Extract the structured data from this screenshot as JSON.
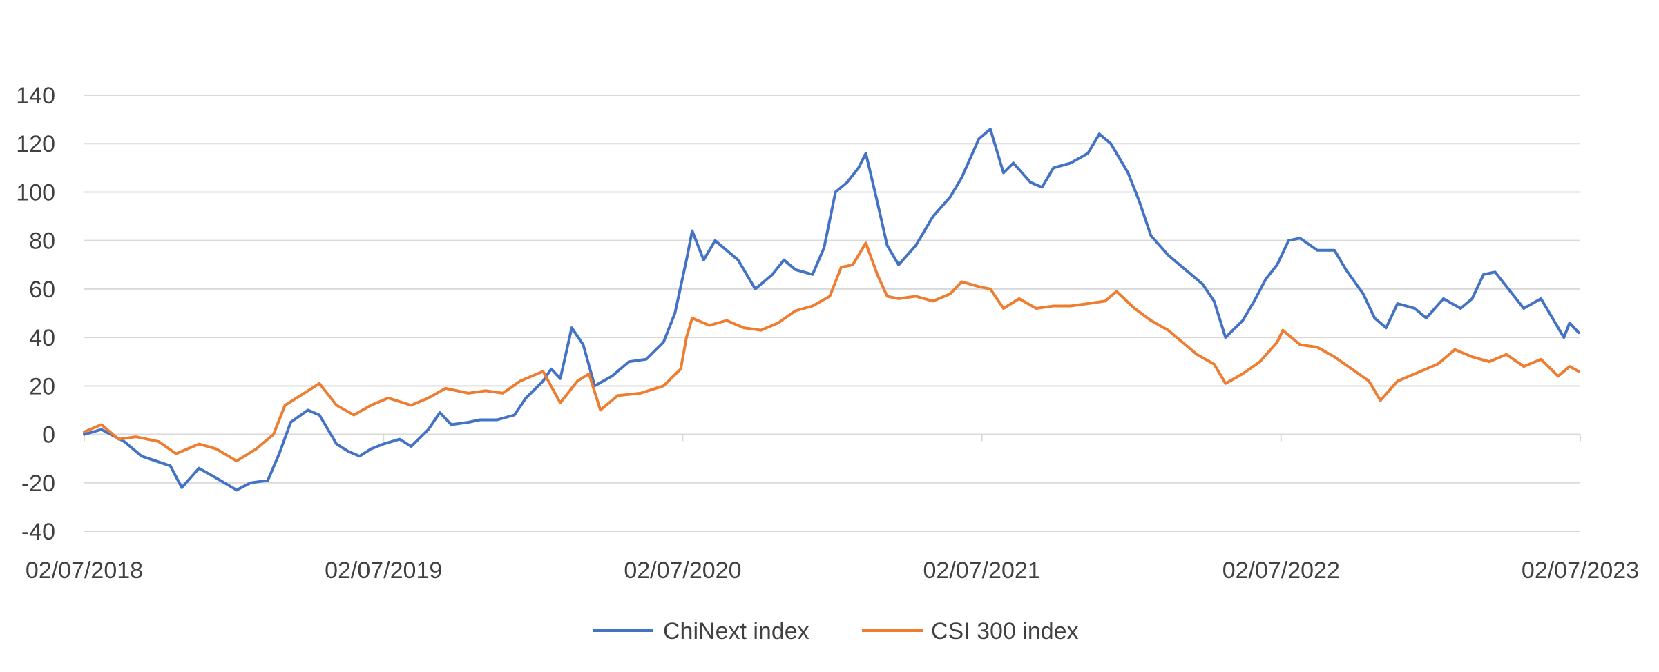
{
  "chart_data": {
    "type": "line",
    "title": "",
    "xlabel": "",
    "ylabel": "",
    "ylim": [
      -40,
      140
    ],
    "y_ticks": [
      -40,
      -20,
      0,
      20,
      40,
      60,
      80,
      100,
      120,
      140
    ],
    "y_tick_labels": [
      "-40",
      "-20",
      "0",
      "20",
      "40",
      "60",
      "80",
      "100",
      "120",
      "140"
    ],
    "x_tick_labels": [
      "02/07/2018",
      "02/07/2019",
      "02/07/2020",
      "02/07/2021",
      "02/07/2022",
      "02/07/2023"
    ],
    "grid": true,
    "legend_position": "bottom",
    "series": [
      {
        "name": "ChiNext index",
        "color": "#4472C4",
        "points": [
          [
            "2018-07-02",
            0
          ],
          [
            "2018-07-23",
            2
          ],
          [
            "2018-08-20",
            -3
          ],
          [
            "2018-09-10",
            -9
          ],
          [
            "2018-10-15",
            -13
          ],
          [
            "2018-10-29",
            -22
          ],
          [
            "2018-11-19",
            -14
          ],
          [
            "2018-12-10",
            -18
          ],
          [
            "2019-01-04",
            -23
          ],
          [
            "2019-01-21",
            -20
          ],
          [
            "2019-02-11",
            -19
          ],
          [
            "2019-02-25",
            -8
          ],
          [
            "2019-03-11",
            5
          ],
          [
            "2019-04-01",
            10
          ],
          [
            "2019-04-15",
            8
          ],
          [
            "2019-05-06",
            -4
          ],
          [
            "2019-05-20",
            -7
          ],
          [
            "2019-06-03",
            -9
          ],
          [
            "2019-06-17",
            -6
          ],
          [
            "2019-07-02",
            -4
          ],
          [
            "2019-07-22",
            -2
          ],
          [
            "2019-08-05",
            -5
          ],
          [
            "2019-08-26",
            2
          ],
          [
            "2019-09-09",
            9
          ],
          [
            "2019-09-23",
            4
          ],
          [
            "2019-10-14",
            5
          ],
          [
            "2019-10-28",
            6
          ],
          [
            "2019-11-18",
            6
          ],
          [
            "2019-12-09",
            8
          ],
          [
            "2019-12-23",
            15
          ],
          [
            "2020-01-13",
            22
          ],
          [
            "2020-01-23",
            27
          ],
          [
            "2020-02-03",
            23
          ],
          [
            "2020-02-17",
            44
          ],
          [
            "2020-03-02",
            37
          ],
          [
            "2020-03-16",
            20
          ],
          [
            "2020-04-06",
            24
          ],
          [
            "2020-04-27",
            30
          ],
          [
            "2020-05-18",
            31
          ],
          [
            "2020-06-08",
            38
          ],
          [
            "2020-06-22",
            50
          ],
          [
            "2020-07-06",
            72
          ],
          [
            "2020-07-13",
            84
          ],
          [
            "2020-07-27",
            72
          ],
          [
            "2020-08-10",
            80
          ],
          [
            "2020-09-07",
            72
          ],
          [
            "2020-09-28",
            60
          ],
          [
            "2020-10-19",
            66
          ],
          [
            "2020-11-02",
            72
          ],
          [
            "2020-11-16",
            68
          ],
          [
            "2020-12-07",
            66
          ],
          [
            "2020-12-21",
            77
          ],
          [
            "2021-01-04",
            100
          ],
          [
            "2021-01-18",
            104
          ],
          [
            "2021-02-01",
            110
          ],
          [
            "2021-02-10",
            116
          ],
          [
            "2021-02-24",
            96
          ],
          [
            "2021-03-08",
            78
          ],
          [
            "2021-03-22",
            70
          ],
          [
            "2021-04-12",
            78
          ],
          [
            "2021-05-03",
            90
          ],
          [
            "2021-05-24",
            98
          ],
          [
            "2021-06-07",
            106
          ],
          [
            "2021-06-28",
            122
          ],
          [
            "2021-07-12",
            126
          ],
          [
            "2021-07-28",
            108
          ],
          [
            "2021-08-09",
            112
          ],
          [
            "2021-08-30",
            104
          ],
          [
            "2021-09-13",
            102
          ],
          [
            "2021-09-27",
            110
          ],
          [
            "2021-10-18",
            112
          ],
          [
            "2021-11-08",
            116
          ],
          [
            "2021-11-22",
            124
          ],
          [
            "2021-12-06",
            120
          ],
          [
            "2021-12-27",
            108
          ],
          [
            "2022-01-10",
            96
          ],
          [
            "2022-01-24",
            82
          ],
          [
            "2022-02-14",
            74
          ],
          [
            "2022-02-28",
            70
          ],
          [
            "2022-03-14",
            66
          ],
          [
            "2022-03-28",
            62
          ],
          [
            "2022-04-11",
            55
          ],
          [
            "2022-04-25",
            40
          ],
          [
            "2022-05-16",
            47
          ],
          [
            "2022-05-30",
            55
          ],
          [
            "2022-06-13",
            64
          ],
          [
            "2022-06-27",
            70
          ],
          [
            "2022-07-11",
            80
          ],
          [
            "2022-07-25",
            81
          ],
          [
            "2022-08-15",
            76
          ],
          [
            "2022-09-05",
            76
          ],
          [
            "2022-09-19",
            68
          ],
          [
            "2022-10-10",
            58
          ],
          [
            "2022-10-24",
            48
          ],
          [
            "2022-11-07",
            44
          ],
          [
            "2022-11-21",
            54
          ],
          [
            "2022-12-12",
            52
          ],
          [
            "2022-12-26",
            48
          ],
          [
            "2023-01-16",
            56
          ],
          [
            "2023-02-06",
            52
          ],
          [
            "2023-02-20",
            56
          ],
          [
            "2023-03-06",
            66
          ],
          [
            "2023-03-20",
            67
          ],
          [
            "2023-04-10",
            58
          ],
          [
            "2023-04-24",
            52
          ],
          [
            "2023-05-15",
            56
          ],
          [
            "2023-05-29",
            48
          ],
          [
            "2023-06-12",
            40
          ],
          [
            "2023-06-19",
            46
          ],
          [
            "2023-06-30",
            42
          ]
        ]
      },
      {
        "name": "CSI 300 index",
        "color": "#ED7D31",
        "points": [
          [
            "2018-07-02",
            1
          ],
          [
            "2018-07-23",
            4
          ],
          [
            "2018-08-13",
            -2
          ],
          [
            "2018-09-03",
            -1
          ],
          [
            "2018-10-01",
            -3
          ],
          [
            "2018-10-22",
            -8
          ],
          [
            "2018-11-19",
            -4
          ],
          [
            "2018-12-10",
            -6
          ],
          [
            "2019-01-04",
            -11
          ],
          [
            "2019-01-28",
            -6
          ],
          [
            "2019-02-18",
            0
          ],
          [
            "2019-03-04",
            12
          ],
          [
            "2019-04-01",
            18
          ],
          [
            "2019-04-15",
            21
          ],
          [
            "2019-05-06",
            12
          ],
          [
            "2019-05-27",
            8
          ],
          [
            "2019-06-17",
            12
          ],
          [
            "2019-07-08",
            15
          ],
          [
            "2019-08-05",
            12
          ],
          [
            "2019-08-26",
            15
          ],
          [
            "2019-09-16",
            19
          ],
          [
            "2019-10-14",
            17
          ],
          [
            "2019-11-04",
            18
          ],
          [
            "2019-11-25",
            17
          ],
          [
            "2019-12-16",
            22
          ],
          [
            "2020-01-13",
            26
          ],
          [
            "2020-02-03",
            13
          ],
          [
            "2020-02-24",
            22
          ],
          [
            "2020-03-09",
            25
          ],
          [
            "2020-03-23",
            10
          ],
          [
            "2020-04-13",
            16
          ],
          [
            "2020-05-11",
            17
          ],
          [
            "2020-06-08",
            20
          ],
          [
            "2020-06-29",
            27
          ],
          [
            "2020-07-06",
            40
          ],
          [
            "2020-07-13",
            48
          ],
          [
            "2020-08-03",
            45
          ],
          [
            "2020-08-24",
            47
          ],
          [
            "2020-09-14",
            44
          ],
          [
            "2020-10-05",
            43
          ],
          [
            "2020-10-26",
            46
          ],
          [
            "2020-11-16",
            51
          ],
          [
            "2020-12-07",
            53
          ],
          [
            "2020-12-28",
            57
          ],
          [
            "2021-01-11",
            69
          ],
          [
            "2021-01-25",
            70
          ],
          [
            "2021-02-10",
            79
          ],
          [
            "2021-02-24",
            66
          ],
          [
            "2021-03-08",
            57
          ],
          [
            "2021-03-22",
            56
          ],
          [
            "2021-04-12",
            57
          ],
          [
            "2021-05-03",
            55
          ],
          [
            "2021-05-24",
            58
          ],
          [
            "2021-06-07",
            63
          ],
          [
            "2021-06-28",
            61
          ],
          [
            "2021-07-12",
            60
          ],
          [
            "2021-07-28",
            52
          ],
          [
            "2021-08-16",
            56
          ],
          [
            "2021-09-06",
            52
          ],
          [
            "2021-09-27",
            53
          ],
          [
            "2021-10-18",
            53
          ],
          [
            "2021-11-08",
            54
          ],
          [
            "2021-11-29",
            55
          ],
          [
            "2021-12-13",
            59
          ],
          [
            "2022-01-04",
            52
          ],
          [
            "2022-01-24",
            47
          ],
          [
            "2022-02-14",
            43
          ],
          [
            "2022-03-07",
            37
          ],
          [
            "2022-03-21",
            33
          ],
          [
            "2022-04-11",
            29
          ],
          [
            "2022-04-25",
            21
          ],
          [
            "2022-05-16",
            25
          ],
          [
            "2022-06-06",
            30
          ],
          [
            "2022-06-27",
            38
          ],
          [
            "2022-07-04",
            43
          ],
          [
            "2022-07-25",
            37
          ],
          [
            "2022-08-15",
            36
          ],
          [
            "2022-09-05",
            32
          ],
          [
            "2022-09-26",
            27
          ],
          [
            "2022-10-17",
            22
          ],
          [
            "2022-10-31",
            14
          ],
          [
            "2022-11-21",
            22
          ],
          [
            "2022-12-12",
            25
          ],
          [
            "2023-01-09",
            29
          ],
          [
            "2023-01-30",
            35
          ],
          [
            "2023-02-20",
            32
          ],
          [
            "2023-03-13",
            30
          ],
          [
            "2023-04-03",
            33
          ],
          [
            "2023-04-24",
            28
          ],
          [
            "2023-05-15",
            31
          ],
          [
            "2023-06-05",
            24
          ],
          [
            "2023-06-19",
            28
          ],
          [
            "2023-06-30",
            26
          ]
        ]
      }
    ]
  }
}
